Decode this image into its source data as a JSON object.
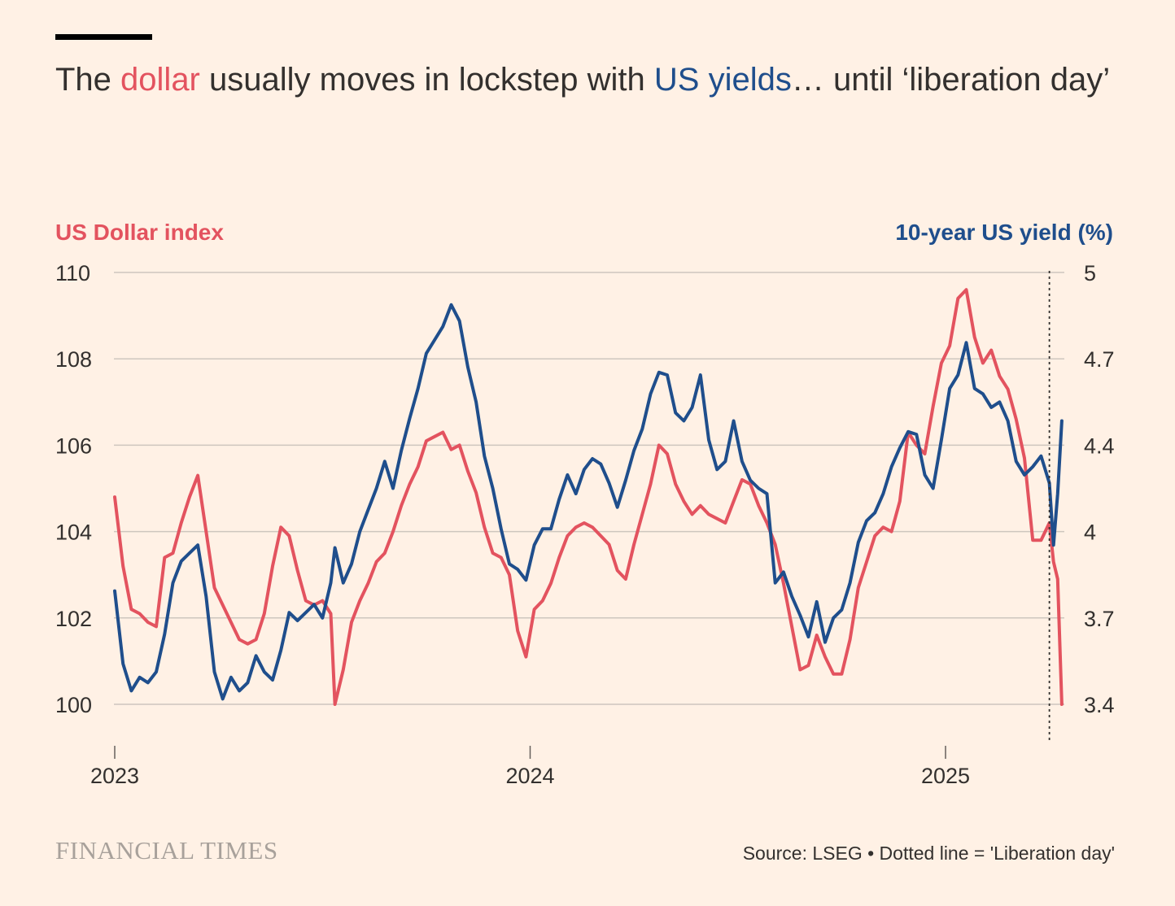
{
  "title": {
    "part1": "The ",
    "dollar_word": "dollar",
    "part2": " usually moves in lockstep with ",
    "yields_word": "US yields",
    "part3": "… until ‘liberation day’"
  },
  "brand": "FINANCIAL TIMES",
  "source": "Source: LSEG • Dotted line = 'Liberation day'",
  "colors": {
    "dollar": "#E3535F",
    "yield": "#1F4E8C",
    "grid": "#CEC6BE",
    "background": "#FFF1E5"
  },
  "chart_data": {
    "type": "line",
    "left_axis": {
      "label": "US Dollar index",
      "range": [
        100,
        110
      ],
      "ticks": [
        "100",
        "102",
        "104",
        "106",
        "108",
        "110"
      ]
    },
    "right_axis": {
      "label": "10-year US yield (%)",
      "range": [
        3.4,
        5.0
      ],
      "ticks": [
        "3.4",
        "3.7",
        "4",
        "4.4",
        "4.7",
        "5"
      ]
    },
    "x_axis": {
      "range": [
        2023.0,
        2025.27
      ],
      "ticks": [
        "2023",
        "2024",
        "2025"
      ]
    },
    "grid": true,
    "annotation": {
      "x": 2025.25,
      "label": "Liberation day"
    },
    "series": [
      {
        "name": "dollar",
        "axis": "left",
        "points": [
          [
            2023.0,
            104.8
          ],
          [
            2023.02,
            103.2
          ],
          [
            2023.04,
            102.2
          ],
          [
            2023.06,
            102.1
          ],
          [
            2023.08,
            101.9
          ],
          [
            2023.1,
            101.8
          ],
          [
            2023.12,
            103.4
          ],
          [
            2023.14,
            103.5
          ],
          [
            2023.16,
            104.2
          ],
          [
            2023.18,
            104.8
          ],
          [
            2023.2,
            105.3
          ],
          [
            2023.22,
            104.0
          ],
          [
            2023.24,
            102.7
          ],
          [
            2023.26,
            102.3
          ],
          [
            2023.28,
            101.9
          ],
          [
            2023.3,
            101.5
          ],
          [
            2023.32,
            101.4
          ],
          [
            2023.34,
            101.5
          ],
          [
            2023.36,
            102.1
          ],
          [
            2023.38,
            103.2
          ],
          [
            2023.4,
            104.1
          ],
          [
            2023.42,
            103.9
          ],
          [
            2023.44,
            103.1
          ],
          [
            2023.46,
            102.4
          ],
          [
            2023.48,
            102.3
          ],
          [
            2023.5,
            102.4
          ],
          [
            2023.52,
            102.1
          ],
          [
            2023.53,
            100.0
          ],
          [
            2023.55,
            100.8
          ],
          [
            2023.57,
            101.9
          ],
          [
            2023.59,
            102.4
          ],
          [
            2023.61,
            102.8
          ],
          [
            2023.63,
            103.3
          ],
          [
            2023.65,
            103.5
          ],
          [
            2023.67,
            104.0
          ],
          [
            2023.69,
            104.6
          ],
          [
            2023.71,
            105.1
          ],
          [
            2023.73,
            105.5
          ],
          [
            2023.75,
            106.1
          ],
          [
            2023.77,
            106.2
          ],
          [
            2023.79,
            106.3
          ],
          [
            2023.81,
            105.9
          ],
          [
            2023.83,
            106.0
          ],
          [
            2023.85,
            105.4
          ],
          [
            2023.87,
            104.9
          ],
          [
            2023.89,
            104.1
          ],
          [
            2023.91,
            103.5
          ],
          [
            2023.93,
            103.4
          ],
          [
            2023.95,
            103.0
          ],
          [
            2023.97,
            101.7
          ],
          [
            2023.99,
            101.1
          ],
          [
            2024.01,
            102.2
          ],
          [
            2024.03,
            102.4
          ],
          [
            2024.05,
            102.8
          ],
          [
            2024.07,
            103.4
          ],
          [
            2024.09,
            103.9
          ],
          [
            2024.11,
            104.1
          ],
          [
            2024.13,
            104.2
          ],
          [
            2024.15,
            104.1
          ],
          [
            2024.17,
            103.9
          ],
          [
            2024.19,
            103.7
          ],
          [
            2024.21,
            103.1
          ],
          [
            2024.23,
            102.9
          ],
          [
            2024.25,
            103.7
          ],
          [
            2024.27,
            104.4
          ],
          [
            2024.29,
            105.1
          ],
          [
            2024.31,
            106.0
          ],
          [
            2024.33,
            105.8
          ],
          [
            2024.35,
            105.1
          ],
          [
            2024.37,
            104.7
          ],
          [
            2024.39,
            104.4
          ],
          [
            2024.41,
            104.6
          ],
          [
            2024.43,
            104.4
          ],
          [
            2024.45,
            104.3
          ],
          [
            2024.47,
            104.2
          ],
          [
            2024.49,
            104.7
          ],
          [
            2024.51,
            105.2
          ],
          [
            2024.53,
            105.1
          ],
          [
            2024.55,
            104.6
          ],
          [
            2024.57,
            104.2
          ],
          [
            2024.59,
            103.7
          ],
          [
            2024.61,
            102.8
          ],
          [
            2024.63,
            101.8
          ],
          [
            2024.65,
            100.8
          ],
          [
            2024.67,
            100.9
          ],
          [
            2024.69,
            101.6
          ],
          [
            2024.71,
            101.1
          ],
          [
            2024.73,
            100.7
          ],
          [
            2024.75,
            100.7
          ],
          [
            2024.77,
            101.5
          ],
          [
            2024.79,
            102.7
          ],
          [
            2024.81,
            103.3
          ],
          [
            2024.83,
            103.9
          ],
          [
            2024.85,
            104.1
          ],
          [
            2024.87,
            104.0
          ],
          [
            2024.89,
            104.7
          ],
          [
            2024.91,
            106.3
          ],
          [
            2024.93,
            106.0
          ],
          [
            2024.95,
            105.8
          ],
          [
            2024.97,
            106.9
          ],
          [
            2024.99,
            107.9
          ],
          [
            2025.01,
            108.3
          ],
          [
            2025.03,
            109.4
          ],
          [
            2025.05,
            109.6
          ],
          [
            2025.07,
            108.5
          ],
          [
            2025.09,
            107.9
          ],
          [
            2025.11,
            108.2
          ],
          [
            2025.13,
            107.6
          ],
          [
            2025.15,
            107.3
          ],
          [
            2025.17,
            106.6
          ],
          [
            2025.19,
            105.7
          ],
          [
            2025.21,
            103.8
          ],
          [
            2025.23,
            103.8
          ],
          [
            2025.25,
            104.2
          ],
          [
            2025.26,
            103.3
          ],
          [
            2025.27,
            102.9
          ],
          [
            2025.28,
            100.0
          ]
        ]
      },
      {
        "name": "yield",
        "axis": "right",
        "points": [
          [
            2023.0,
            3.82
          ],
          [
            2023.02,
            3.55
          ],
          [
            2023.04,
            3.45
          ],
          [
            2023.06,
            3.5
          ],
          [
            2023.08,
            3.48
          ],
          [
            2023.1,
            3.52
          ],
          [
            2023.12,
            3.66
          ],
          [
            2023.14,
            3.85
          ],
          [
            2023.16,
            3.93
          ],
          [
            2023.18,
            3.96
          ],
          [
            2023.2,
            3.99
          ],
          [
            2023.22,
            3.8
          ],
          [
            2023.24,
            3.52
          ],
          [
            2023.26,
            3.42
          ],
          [
            2023.28,
            3.5
          ],
          [
            2023.3,
            3.45
          ],
          [
            2023.32,
            3.48
          ],
          [
            2023.34,
            3.58
          ],
          [
            2023.36,
            3.52
          ],
          [
            2023.38,
            3.49
          ],
          [
            2023.4,
            3.6
          ],
          [
            2023.42,
            3.74
          ],
          [
            2023.44,
            3.71
          ],
          [
            2023.46,
            3.74
          ],
          [
            2023.48,
            3.77
          ],
          [
            2023.5,
            3.72
          ],
          [
            2023.52,
            3.85
          ],
          [
            2023.53,
            3.98
          ],
          [
            2023.55,
            3.85
          ],
          [
            2023.57,
            3.92
          ],
          [
            2023.59,
            4.04
          ],
          [
            2023.61,
            4.12
          ],
          [
            2023.63,
            4.2
          ],
          [
            2023.65,
            4.3
          ],
          [
            2023.67,
            4.2
          ],
          [
            2023.69,
            4.34
          ],
          [
            2023.71,
            4.46
          ],
          [
            2023.73,
            4.57
          ],
          [
            2023.75,
            4.7
          ],
          [
            2023.77,
            4.75
          ],
          [
            2023.79,
            4.8
          ],
          [
            2023.81,
            4.88
          ],
          [
            2023.83,
            4.82
          ],
          [
            2023.85,
            4.65
          ],
          [
            2023.87,
            4.52
          ],
          [
            2023.89,
            4.32
          ],
          [
            2023.91,
            4.2
          ],
          [
            2023.93,
            4.05
          ],
          [
            2023.95,
            3.92
          ],
          [
            2023.97,
            3.9
          ],
          [
            2023.99,
            3.86
          ],
          [
            2024.01,
            3.99
          ],
          [
            2024.03,
            4.05
          ],
          [
            2024.05,
            4.05
          ],
          [
            2024.07,
            4.16
          ],
          [
            2024.09,
            4.25
          ],
          [
            2024.11,
            4.18
          ],
          [
            2024.13,
            4.27
          ],
          [
            2024.15,
            4.31
          ],
          [
            2024.17,
            4.29
          ],
          [
            2024.19,
            4.22
          ],
          [
            2024.21,
            4.13
          ],
          [
            2024.23,
            4.23
          ],
          [
            2024.25,
            4.34
          ],
          [
            2024.27,
            4.42
          ],
          [
            2024.29,
            4.55
          ],
          [
            2024.31,
            4.63
          ],
          [
            2024.33,
            4.62
          ],
          [
            2024.35,
            4.48
          ],
          [
            2024.37,
            4.45
          ],
          [
            2024.39,
            4.5
          ],
          [
            2024.41,
            4.62
          ],
          [
            2024.43,
            4.38
          ],
          [
            2024.45,
            4.27
          ],
          [
            2024.47,
            4.3
          ],
          [
            2024.49,
            4.45
          ],
          [
            2024.51,
            4.3
          ],
          [
            2024.53,
            4.23
          ],
          [
            2024.55,
            4.2
          ],
          [
            2024.57,
            4.18
          ],
          [
            2024.59,
            3.85
          ],
          [
            2024.61,
            3.89
          ],
          [
            2024.63,
            3.8
          ],
          [
            2024.65,
            3.73
          ],
          [
            2024.67,
            3.65
          ],
          [
            2024.69,
            3.78
          ],
          [
            2024.71,
            3.63
          ],
          [
            2024.73,
            3.72
          ],
          [
            2024.75,
            3.75
          ],
          [
            2024.77,
            3.85
          ],
          [
            2024.79,
            4.0
          ],
          [
            2024.81,
            4.08
          ],
          [
            2024.83,
            4.11
          ],
          [
            2024.85,
            4.18
          ],
          [
            2024.87,
            4.28
          ],
          [
            2024.89,
            4.35
          ],
          [
            2024.91,
            4.41
          ],
          [
            2024.93,
            4.4
          ],
          [
            2024.95,
            4.25
          ],
          [
            2024.97,
            4.2
          ],
          [
            2024.99,
            4.38
          ],
          [
            2025.01,
            4.57
          ],
          [
            2025.03,
            4.62
          ],
          [
            2025.05,
            4.74
          ],
          [
            2025.07,
            4.57
          ],
          [
            2025.09,
            4.55
          ],
          [
            2025.11,
            4.5
          ],
          [
            2025.13,
            4.52
          ],
          [
            2025.15,
            4.45
          ],
          [
            2025.17,
            4.3
          ],
          [
            2025.19,
            4.25
          ],
          [
            2025.21,
            4.28
          ],
          [
            2025.23,
            4.32
          ],
          [
            2025.25,
            4.22
          ],
          [
            2025.26,
            3.99
          ],
          [
            2025.27,
            4.18
          ],
          [
            2025.28,
            4.45
          ]
        ]
      }
    ]
  }
}
